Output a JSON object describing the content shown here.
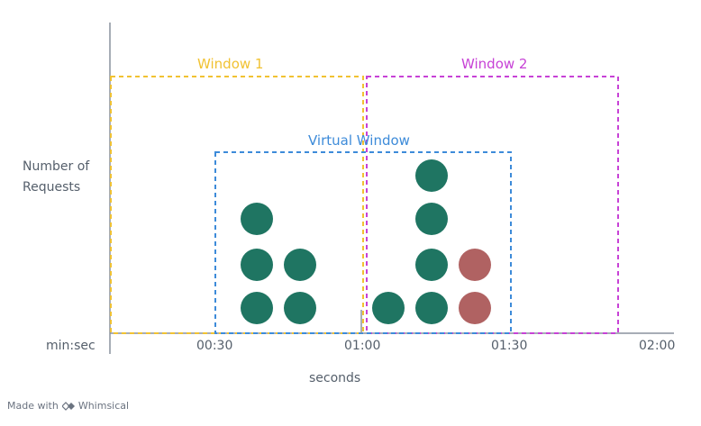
{
  "diagram": {
    "y_axis_label": "Number of\nRequests",
    "x_axis_unit_label": "min:sec",
    "x_axis_title": "seconds",
    "ticks": [
      "00:30",
      "01:00",
      "01:30",
      "02:00"
    ],
    "windows": [
      {
        "label": "Window 1",
        "color": "#f1c232",
        "range": [
          "00:00",
          "01:00"
        ]
      },
      {
        "label": "Window 2",
        "color": "#c742d6",
        "range": [
          "01:00",
          "02:00"
        ]
      },
      {
        "label": "Virtual Window",
        "color": "#3d8bd9",
        "range": [
          "00:30",
          "01:30"
        ]
      }
    ],
    "request_colors": {
      "accepted": "#1f7562",
      "rejected": "#b06262"
    },
    "request_columns": [
      {
        "status": [
          "accepted",
          "accepted",
          "accepted"
        ]
      },
      {
        "status": [
          "accepted",
          "accepted"
        ]
      },
      {
        "status": [
          "accepted"
        ]
      },
      {
        "status": [
          "accepted",
          "accepted",
          "accepted",
          "accepted"
        ]
      },
      {
        "status": [
          "rejected",
          "rejected"
        ]
      }
    ],
    "axis_color": "#8a929d"
  },
  "footer": {
    "prefix": "Made with",
    "brand": "Whimsical"
  }
}
